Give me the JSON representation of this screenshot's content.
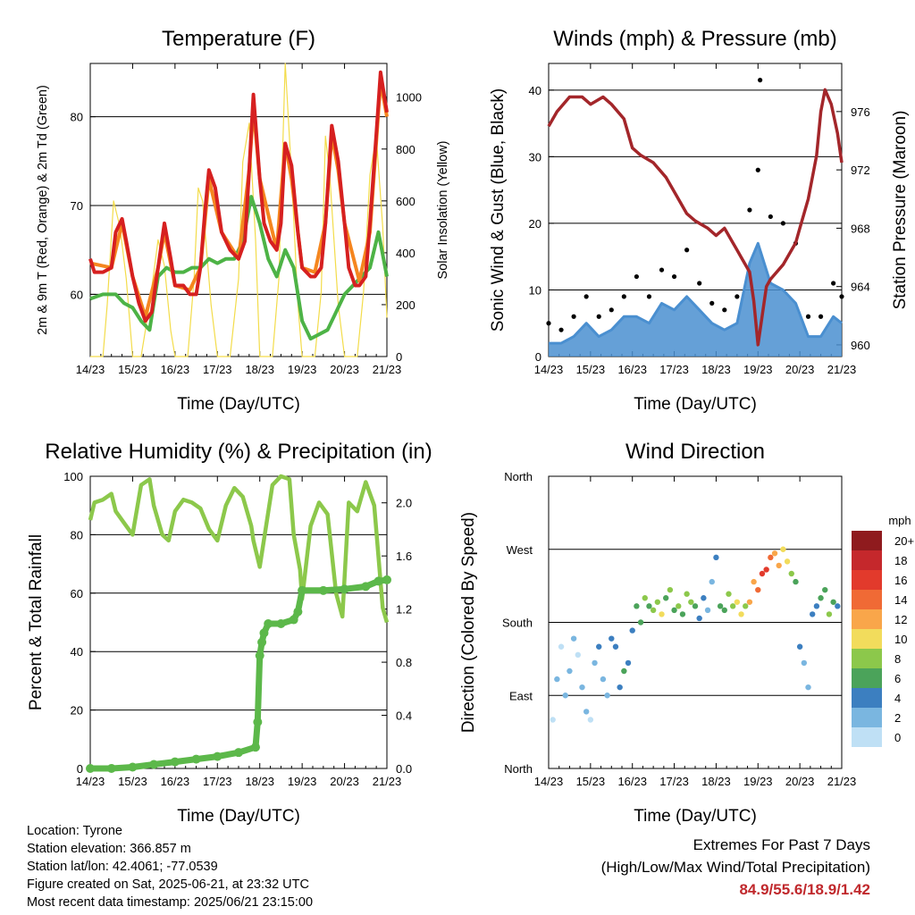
{
  "chart_data": [
    {
      "type": "line",
      "title": "Temperature (F)",
      "xlabel": "Time (Day/UTC)",
      "ylabel": "2m & 9m T (Red, Orange) & 2m Td (Green)",
      "ylabel2": "Solar Insolation (Yellow)",
      "x_ticks": [
        "14/23",
        "15/23",
        "16/23",
        "17/23",
        "18/23",
        "19/23",
        "20/23",
        "21/23"
      ],
      "ylim": [
        53,
        86
      ],
      "y_ticks": [
        60,
        70,
        80
      ],
      "y2lim": [
        0,
        1130
      ],
      "y2_ticks": [
        0,
        200,
        400,
        600,
        800,
        1000
      ],
      "grid": true,
      "series": [
        {
          "name": "2m T",
          "color": "#d62020",
          "x": [
            0,
            0.1,
            0.3,
            0.5,
            0.6,
            0.75,
            0.85,
            1.0,
            1.15,
            1.3,
            1.45,
            1.6,
            1.75,
            1.9,
            2.0,
            2.2,
            2.35,
            2.5,
            2.6,
            2.7,
            2.8,
            2.95,
            3.1,
            3.3,
            3.5,
            3.65,
            3.75,
            3.85,
            4.0,
            4.1,
            4.25,
            4.4,
            4.5,
            4.6,
            4.75,
            4.9,
            5.0,
            5.2,
            5.3,
            5.45,
            5.55,
            5.7,
            5.85,
            6.0,
            6.1,
            6.25,
            6.35,
            6.5,
            6.6,
            6.75,
            6.85,
            6.95,
            7.0
          ],
          "values": [
            64,
            62.5,
            62.5,
            63,
            67,
            68.5,
            66,
            62,
            59,
            57,
            58,
            63,
            68,
            64,
            61,
            61,
            60,
            60,
            63,
            69,
            74,
            72,
            67,
            65,
            64,
            66,
            74,
            82.5,
            73,
            68,
            66,
            65,
            68,
            77,
            74.5,
            67,
            63,
            62,
            62,
            63,
            68,
            79,
            75,
            68,
            63,
            61,
            61,
            62,
            68,
            78,
            85,
            82,
            80.5
          ]
        },
        {
          "name": "9m T",
          "color": "#f5861f",
          "x": [
            0,
            0.5,
            0.75,
            1.0,
            1.3,
            1.6,
            1.75,
            2.0,
            2.35,
            2.6,
            2.8,
            3.1,
            3.5,
            3.75,
            3.85,
            4.0,
            4.4,
            4.6,
            4.75,
            5.0,
            5.3,
            5.55,
            5.7,
            5.85,
            6.0,
            6.35,
            6.6,
            6.85,
            7.0
          ],
          "values": [
            63.5,
            63,
            68,
            62,
            57.5,
            63,
            67,
            61,
            60.5,
            63,
            73,
            67,
            64,
            74,
            81,
            73,
            65,
            77,
            73,
            63,
            62.5,
            68,
            78,
            74,
            68,
            61.5,
            67,
            84,
            80
          ]
        },
        {
          "name": "2m Td",
          "color": "#4db346",
          "x": [
            0,
            0.3,
            0.6,
            0.8,
            1.0,
            1.2,
            1.4,
            1.6,
            1.8,
            2.0,
            2.2,
            2.4,
            2.6,
            2.8,
            3.0,
            3.2,
            3.4,
            3.6,
            3.8,
            4.0,
            4.2,
            4.4,
            4.6,
            4.8,
            5.0,
            5.2,
            5.4,
            5.6,
            5.8,
            6.0,
            6.2,
            6.4,
            6.6,
            6.8,
            7.0
          ],
          "values": [
            59.5,
            60,
            60,
            59,
            58.5,
            57,
            56,
            62,
            63,
            62.5,
            62.5,
            63,
            63,
            64,
            63.5,
            64,
            64,
            66,
            71,
            68,
            64,
            62,
            65,
            63,
            57,
            55,
            55.5,
            56,
            58,
            60,
            61,
            62,
            63,
            67,
            62
          ]
        },
        {
          "name": "Solar Insolation",
          "color": "#f3dc4a",
          "axis": "right",
          "x": [
            0,
            0.3,
            0.4,
            0.55,
            0.7,
            0.85,
            1.0,
            1.2,
            1.4,
            1.6,
            1.75,
            1.9,
            2.0,
            2.3,
            2.45,
            2.55,
            2.65,
            2.85,
            3.0,
            3.3,
            3.5,
            3.6,
            3.75,
            3.9,
            4.0,
            4.3,
            4.45,
            4.6,
            4.75,
            4.9,
            5.0,
            5.3,
            5.45,
            5.55,
            5.65,
            5.85,
            6.0,
            6.3,
            6.45,
            6.6,
            6.75,
            6.9,
            7.0
          ],
          "values": [
            0,
            0,
            200,
            600,
            500,
            300,
            0,
            0,
            200,
            450,
            350,
            100,
            0,
            0,
            300,
            650,
            600,
            200,
            0,
            0,
            300,
            750,
            900,
            450,
            0,
            0,
            300,
            1130,
            700,
            200,
            0,
            0,
            250,
            850,
            700,
            200,
            0,
            0,
            250,
            700,
            850,
            500,
            150
          ]
        }
      ]
    },
    {
      "type": "scatter",
      "title": "Winds (mph) & Pressure (mb)",
      "xlabel": "Time (Day/UTC)",
      "ylabel": "Sonic Wind & Gust (Blue, Black)",
      "ylabel2": "Station Pressure (Maroon)",
      "x_ticks": [
        "14/23",
        "15/23",
        "16/23",
        "17/23",
        "18/23",
        "19/23",
        "20/23",
        "21/23"
      ],
      "ylim": [
        0,
        44
      ],
      "y_ticks": [
        0,
        10,
        20,
        30,
        40
      ],
      "y2lim": [
        959.2,
        979.3
      ],
      "y2_ticks": [
        960,
        964,
        968,
        972,
        976
      ],
      "grid": true,
      "series": [
        {
          "name": "Sonic Wind",
          "color": "#4a8fd0",
          "x": [
            0,
            0.3,
            0.6,
            0.9,
            1.2,
            1.5,
            1.8,
            2.1,
            2.4,
            2.7,
            3.0,
            3.3,
            3.6,
            3.9,
            4.2,
            4.5,
            4.8,
            5.0,
            5.3,
            5.6,
            5.9,
            6.2,
            6.5,
            6.8,
            7.0
          ],
          "values": [
            2,
            2,
            3,
            5,
            3,
            4,
            6,
            6,
            5,
            8,
            7,
            9,
            7,
            5,
            4,
            5,
            14,
            17,
            11,
            10,
            8,
            3,
            3,
            6,
            5
          ]
        },
        {
          "name": "Gust",
          "color": "#000000",
          "x": [
            0,
            0.3,
            0.6,
            0.9,
            1.2,
            1.5,
            1.8,
            2.1,
            2.4,
            2.7,
            3.0,
            3.3,
            3.6,
            3.9,
            4.2,
            4.5,
            4.8,
            5.0,
            5.3,
            5.6,
            5.9,
            6.2,
            6.5,
            6.8,
            7.0
          ],
          "values": [
            5,
            4,
            6,
            9,
            6,
            7,
            9,
            12,
            9,
            13,
            12,
            16,
            11,
            8,
            7,
            9,
            22,
            28,
            21,
            20,
            17,
            6,
            6,
            11,
            9
          ]
        },
        {
          "name": "Station Pressure",
          "color": "#a3262a",
          "axis": "right",
          "x": [
            0,
            0.2,
            0.5,
            0.8,
            1.0,
            1.3,
            1.5,
            1.8,
            2.0,
            2.2,
            2.5,
            2.8,
            3.0,
            3.3,
            3.5,
            3.8,
            4.0,
            4.2,
            4.4,
            4.5,
            4.6,
            4.8,
            4.9,
            5.0,
            5.1,
            5.2,
            5.3,
            5.6,
            5.9,
            6.0,
            6.2,
            6.4,
            6.5,
            6.6,
            6.75,
            6.9,
            7.0
          ],
          "values": [
            975,
            976,
            977,
            977,
            976.5,
            977,
            976.5,
            975.5,
            973.5,
            973,
            972.5,
            971.5,
            970.5,
            969,
            968.5,
            968,
            967.5,
            968,
            967,
            966.5,
            966,
            965,
            963,
            960,
            962,
            964,
            964.5,
            965.5,
            967,
            968,
            970,
            973,
            976,
            977.5,
            976.5,
            974.5,
            972.5
          ]
        }
      ],
      "outlier_gust": {
        "x": 5.05,
        "value": 41.5
      }
    },
    {
      "type": "line",
      "title": "Relative Humidity (%) & Precipitation (in)",
      "xlabel": "Time (Day/UTC)",
      "ylabel": "Percent & Total Rainfall",
      "x_ticks": [
        "14/23",
        "15/23",
        "16/23",
        "17/23",
        "18/23",
        "19/23",
        "20/23",
        "21/23"
      ],
      "ylim": [
        0,
        100
      ],
      "y_ticks": [
        0,
        20,
        40,
        60,
        80,
        100
      ],
      "y2lim": [
        0,
        2.2
      ],
      "y2_ticks": [
        0.0,
        0.4,
        0.8,
        1.2,
        1.6,
        2.0
      ],
      "grid": true,
      "series": [
        {
          "name": "Relative Humidity",
          "color": "#8cc84b",
          "x": [
            0,
            0.1,
            0.3,
            0.5,
            0.6,
            0.8,
            1.0,
            1.2,
            1.4,
            1.5,
            1.7,
            1.85,
            2.0,
            2.2,
            2.4,
            2.6,
            2.8,
            3.0,
            3.2,
            3.4,
            3.6,
            3.8,
            3.85,
            4.0,
            4.3,
            4.5,
            4.7,
            4.8,
            4.95,
            5.0,
            5.2,
            5.4,
            5.6,
            5.8,
            5.95,
            6.1,
            6.3,
            6.5,
            6.7,
            6.9,
            7.0
          ],
          "values": [
            85,
            91,
            92,
            94,
            88,
            84,
            80,
            97,
            99,
            90,
            80,
            78,
            88,
            92,
            91,
            89,
            82,
            78,
            90,
            96,
            93,
            83,
            78,
            69,
            97,
            100,
            99,
            80,
            68,
            58,
            83,
            91,
            87,
            60,
            52,
            91,
            88,
            98,
            90,
            55,
            50
          ]
        },
        {
          "name": "Total Precipitation",
          "color": "#5cb84a",
          "axis": "right",
          "x": [
            0,
            0.5,
            1.0,
            1.5,
            2.0,
            2.5,
            3.0,
            3.5,
            3.9,
            3.95,
            4.0,
            4.05,
            4.1,
            4.2,
            4.5,
            4.8,
            4.9,
            5.0,
            5.5,
            6.0,
            6.5,
            6.8,
            7.0
          ],
          "values": [
            0,
            0,
            0.01,
            0.03,
            0.05,
            0.07,
            0.09,
            0.12,
            0.16,
            0.35,
            0.85,
            0.95,
            1.02,
            1.09,
            1.09,
            1.12,
            1.18,
            1.34,
            1.34,
            1.35,
            1.37,
            1.41,
            1.42
          ]
        }
      ]
    },
    {
      "type": "scatter",
      "title": "Wind Direction",
      "xlabel": "Time (Day/UTC)",
      "ylabel": "Direction (Colored By Speed)",
      "x_ticks": [
        "14/23",
        "15/23",
        "16/23",
        "17/23",
        "18/23",
        "19/23",
        "20/23",
        "21/23"
      ],
      "y_ticks": [
        "North",
        "East",
        "South",
        "West",
        "North"
      ],
      "ylim": [
        0,
        360
      ],
      "grid": true,
      "colorbar": {
        "title": "mph",
        "labels": [
          "20+",
          "18",
          "16",
          "14",
          "12",
          "10",
          "8",
          "6",
          "4",
          "2",
          "0"
        ],
        "colors": [
          "#8f1b1e",
          "#c5282c",
          "#e23a2c",
          "#f06a35",
          "#f9a64a",
          "#f2dc5c",
          "#8cc84b",
          "#4ba35a",
          "#3c7fc0",
          "#7ab6e0",
          "#bfe0f5"
        ]
      },
      "series": [
        {
          "name": "Direction",
          "x": [
            0.1,
            0.2,
            0.3,
            0.4,
            0.5,
            0.6,
            0.7,
            0.8,
            0.9,
            1.0,
            1.1,
            1.2,
            1.3,
            1.4,
            1.5,
            1.6,
            1.7,
            1.8,
            1.9,
            2.0,
            2.1,
            2.2,
            2.3,
            2.4,
            2.5,
            2.6,
            2.7,
            2.8,
            2.9,
            3.0,
            3.1,
            3.2,
            3.3,
            3.4,
            3.5,
            3.6,
            3.7,
            3.8,
            3.9,
            4.0,
            4.1,
            4.2,
            4.3,
            4.4,
            4.5,
            4.6,
            4.7,
            4.8,
            4.9,
            5.0,
            5.1,
            5.2,
            5.3,
            5.4,
            5.5,
            5.6,
            5.7,
            5.8,
            5.9,
            6.0,
            6.1,
            6.2,
            6.3,
            6.4,
            6.5,
            6.6,
            6.7,
            6.8,
            6.9
          ],
          "values": [
            60,
            110,
            150,
            90,
            120,
            160,
            140,
            100,
            70,
            60,
            130,
            150,
            110,
            90,
            160,
            150,
            100,
            120,
            130,
            170,
            200,
            180,
            210,
            200,
            195,
            205,
            190,
            210,
            220,
            195,
            200,
            190,
            215,
            205,
            200,
            185,
            210,
            195,
            230,
            260,
            200,
            195,
            215,
            200,
            205,
            190,
            200,
            205,
            230,
            220,
            240,
            245,
            260,
            265,
            250,
            270,
            255,
            240,
            230,
            150,
            130,
            100,
            190,
            200,
            210,
            220,
            190,
            205,
            200
          ],
          "speeds": [
            1,
            2,
            1,
            2,
            3,
            2,
            1,
            3,
            2,
            1,
            2,
            4,
            2,
            3,
            4,
            5,
            4,
            6,
            5,
            5,
            7,
            6,
            8,
            7,
            9,
            8,
            10,
            7,
            9,
            6,
            8,
            7,
            9,
            8,
            6,
            5,
            4,
            3,
            2,
            5,
            7,
            6,
            8,
            9,
            11,
            10,
            9,
            12,
            13,
            15,
            17,
            16,
            14,
            13,
            12,
            11,
            10,
            9,
            7,
            4,
            3,
            2,
            4,
            5,
            6,
            7,
            8,
            6,
            5
          ]
        }
      ]
    }
  ],
  "info": {
    "location": "Location: Tyrone",
    "elevation": "Station elevation: 366.857 m",
    "latlon": "Station lat/lon: 42.4061; -77.0539",
    "created": "Figure created on Sat, 2025-06-21, at 23:32 UTC",
    "recent": "Most recent data timestamp: 2025/06/21 23:15:00"
  },
  "extremes": {
    "title": "Extremes For Past 7 Days",
    "subtitle": "(High/Low/Max Wind/Total Precipitation)",
    "values": "84.9/55.6/18.9/1.42"
  }
}
